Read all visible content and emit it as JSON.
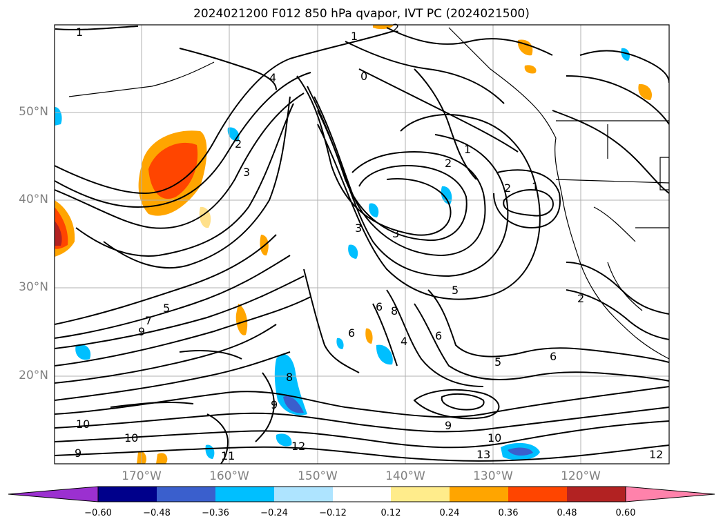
{
  "title": "2024021200 F012 850 hPa qvapor, IVT PC (2024021500)",
  "map": {
    "lat_labels": [
      "50°N",
      "40°N",
      "30°N",
      "20°N"
    ],
    "lon_labels": [
      "170°W",
      "160°W",
      "150°W",
      "140°W",
      "130°W",
      "120°W"
    ],
    "contour_labels": [
      "1",
      "2",
      "4",
      "0",
      "1",
      "3",
      "2",
      "1",
      "3",
      "2",
      "3",
      "5",
      "6",
      "6",
      "7",
      "8",
      "9",
      "9",
      "10",
      "11",
      "12",
      "13",
      "1",
      "2",
      "2",
      "5",
      "6",
      "5",
      "6",
      "4",
      "10",
      "12",
      "9",
      "9",
      "8",
      "10"
    ]
  },
  "colorbar": {
    "ticks": [
      "−0.60",
      "−0.48",
      "−0.36",
      "−0.24",
      "−0.12",
      "0.12",
      "0.24",
      "0.36",
      "0.48",
      "0.60"
    ],
    "colors": [
      "#9b30d0",
      "#00008b",
      "#3a5fcd",
      "#00bfff",
      "#aee4ff",
      "#ffffff",
      "#ffec8b",
      "#ffa500",
      "#ff4500",
      "#b22222",
      "#ff82ab"
    ]
  }
}
